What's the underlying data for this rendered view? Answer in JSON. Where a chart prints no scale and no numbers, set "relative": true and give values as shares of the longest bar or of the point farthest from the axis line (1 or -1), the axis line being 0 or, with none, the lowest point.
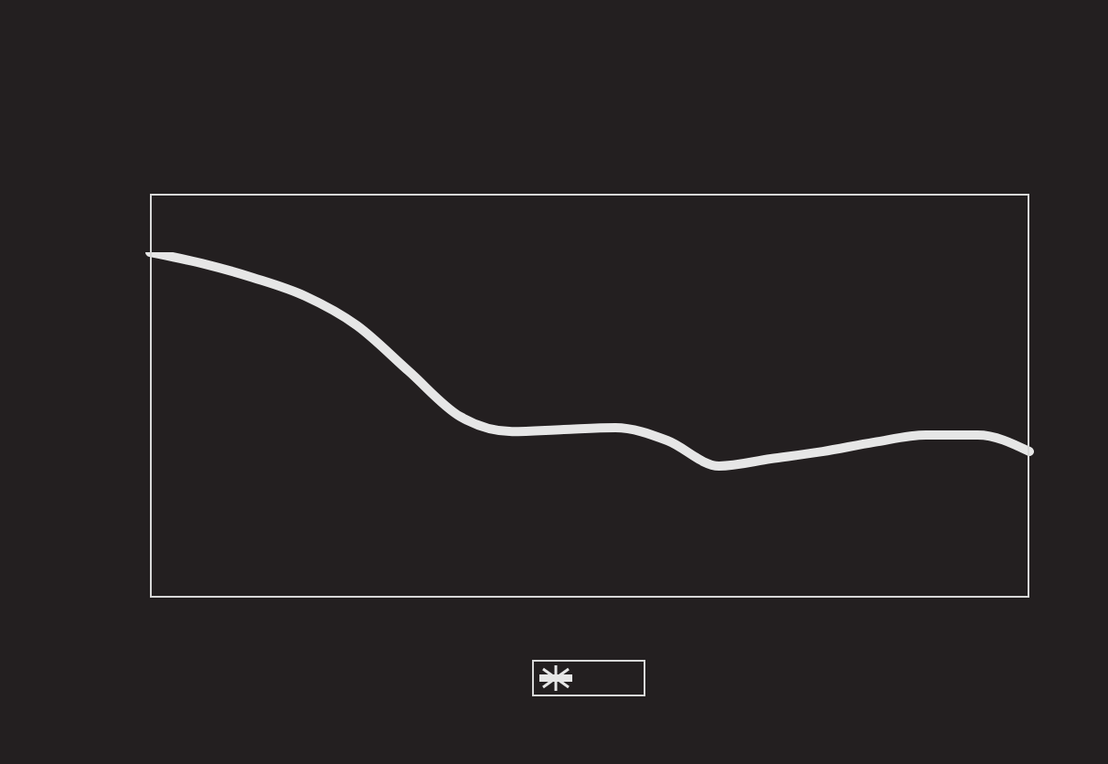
{
  "chart_data": {
    "type": "line",
    "relative": true,
    "categories": [
      null,
      null,
      null,
      null,
      null,
      null,
      null,
      null,
      null,
      null,
      null,
      null,
      null,
      null,
      null,
      null,
      null,
      null
    ],
    "series": [
      {
        "color": "#e6e6e6",
        "values": [
          1,
          0.968,
          0.926,
          0.873,
          0.788,
          0.656,
          0.524,
          0.481,
          0.487,
          0.492,
          0.455,
          0.381,
          0.402,
          0.423,
          0.45,
          0.471,
          0.471,
          0.423
        ]
      }
    ],
    "marker": "none",
    "line_style": "solid"
  }
}
